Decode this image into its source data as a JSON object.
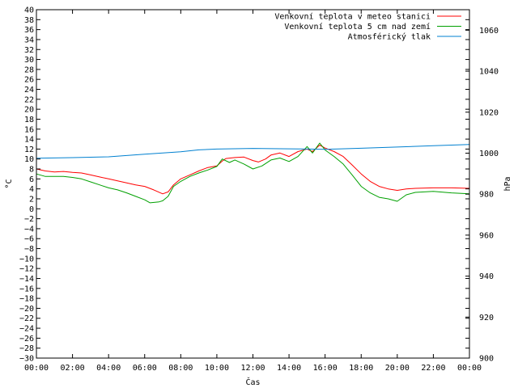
{
  "chart_data": {
    "type": "line",
    "xlabel": "Čas",
    "ylabel": "°C",
    "y2label": "hPa",
    "x_ticks": [
      "00:00",
      "02:00",
      "04:00",
      "06:00",
      "08:00",
      "10:00",
      "12:00",
      "14:00",
      "16:00",
      "18:00",
      "20:00",
      "22:00",
      "00:00"
    ],
    "x_range_hours": [
      0,
      24
    ],
    "ylim": [
      -30,
      40
    ],
    "y_tick_step": 2,
    "y2lim": [
      900,
      1070
    ],
    "y2_ticks": [
      900,
      920,
      940,
      960,
      980,
      1000,
      1020,
      1040,
      1060
    ],
    "grid": false,
    "legend_position": "top-right",
    "series": [
      {
        "name": "Venkovní teplota v meteo stanici",
        "axis": "left",
        "color": "#ff0000",
        "points": [
          [
            0,
            8.0
          ],
          [
            0.5,
            7.6
          ],
          [
            1,
            7.4
          ],
          [
            1.5,
            7.5
          ],
          [
            2,
            7.3
          ],
          [
            2.5,
            7.2
          ],
          [
            3,
            6.8
          ],
          [
            3.5,
            6.4
          ],
          [
            4,
            6.0
          ],
          [
            4.5,
            5.6
          ],
          [
            5,
            5.2
          ],
          [
            5.5,
            4.8
          ],
          [
            6,
            4.5
          ],
          [
            6.5,
            3.8
          ],
          [
            7,
            3.0
          ],
          [
            7.3,
            3.4
          ],
          [
            7.6,
            4.8
          ],
          [
            8,
            6.0
          ],
          [
            8.5,
            6.8
          ],
          [
            9,
            7.6
          ],
          [
            9.5,
            8.3
          ],
          [
            10,
            8.6
          ],
          [
            10.3,
            9.6
          ],
          [
            10.5,
            10.1
          ],
          [
            11,
            10.3
          ],
          [
            11.5,
            10.4
          ],
          [
            12,
            9.7
          ],
          [
            12.3,
            9.4
          ],
          [
            12.7,
            10.0
          ],
          [
            13,
            10.8
          ],
          [
            13.5,
            11.2
          ],
          [
            14,
            10.5
          ],
          [
            14.5,
            11.5
          ],
          [
            15,
            12.0
          ],
          [
            15.3,
            11.5
          ],
          [
            15.7,
            12.8
          ],
          [
            16,
            12.2
          ],
          [
            16.5,
            11.5
          ],
          [
            17,
            10.5
          ],
          [
            17.5,
            8.8
          ],
          [
            18,
            7.0
          ],
          [
            18.5,
            5.5
          ],
          [
            19,
            4.5
          ],
          [
            19.5,
            4.0
          ],
          [
            20,
            3.7
          ],
          [
            20.5,
            4.0
          ],
          [
            21,
            4.1
          ],
          [
            22,
            4.2
          ],
          [
            23,
            4.2
          ],
          [
            24,
            4.1
          ]
        ]
      },
      {
        "name": "Venkovní teplota 5 cm nad zemí",
        "axis": "left",
        "color": "#00a000",
        "points": [
          [
            0,
            7.0
          ],
          [
            0.5,
            6.5
          ],
          [
            1,
            6.5
          ],
          [
            1.5,
            6.5
          ],
          [
            2,
            6.3
          ],
          [
            2.5,
            6.0
          ],
          [
            3,
            5.4
          ],
          [
            3.5,
            4.8
          ],
          [
            4,
            4.2
          ],
          [
            4.5,
            3.8
          ],
          [
            5,
            3.2
          ],
          [
            5.5,
            2.5
          ],
          [
            6,
            1.8
          ],
          [
            6.3,
            1.2
          ],
          [
            6.8,
            1.4
          ],
          [
            7,
            1.6
          ],
          [
            7.3,
            2.5
          ],
          [
            7.6,
            4.5
          ],
          [
            8,
            5.5
          ],
          [
            8.5,
            6.5
          ],
          [
            9,
            7.2
          ],
          [
            9.5,
            7.8
          ],
          [
            10,
            8.5
          ],
          [
            10.3,
            10.0
          ],
          [
            10.7,
            9.3
          ],
          [
            11,
            9.8
          ],
          [
            11.5,
            9.0
          ],
          [
            12,
            8.0
          ],
          [
            12.5,
            8.6
          ],
          [
            13,
            9.8
          ],
          [
            13.5,
            10.2
          ],
          [
            14,
            9.5
          ],
          [
            14.5,
            10.5
          ],
          [
            15,
            12.5
          ],
          [
            15.3,
            11.2
          ],
          [
            15.7,
            13.2
          ],
          [
            16,
            11.8
          ],
          [
            16.5,
            10.5
          ],
          [
            17,
            9.0
          ],
          [
            17.5,
            6.8
          ],
          [
            18,
            4.5
          ],
          [
            18.5,
            3.2
          ],
          [
            19,
            2.3
          ],
          [
            19.5,
            2.0
          ],
          [
            20,
            1.5
          ],
          [
            20.5,
            2.8
          ],
          [
            21,
            3.3
          ],
          [
            22,
            3.5
          ],
          [
            23,
            3.2
          ],
          [
            24,
            3.0
          ]
        ]
      },
      {
        "name": "Atmosférický tlak",
        "axis": "right",
        "color": "#0080d0",
        "points": [
          [
            0,
            997.5
          ],
          [
            2,
            997.8
          ],
          [
            4,
            998.2
          ],
          [
            6,
            999.5
          ],
          [
            8,
            1000.7
          ],
          [
            9,
            1001.6
          ],
          [
            10,
            1002.0
          ],
          [
            12,
            1002.3
          ],
          [
            14,
            1002.1
          ],
          [
            16,
            1001.9
          ],
          [
            18,
            1002.4
          ],
          [
            20,
            1003.0
          ],
          [
            22,
            1003.6
          ],
          [
            24,
            1004.2
          ]
        ]
      }
    ]
  }
}
